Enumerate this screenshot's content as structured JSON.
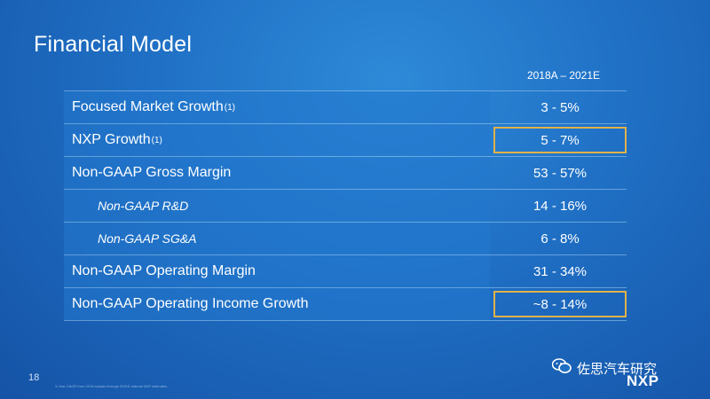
{
  "title": "Financial Model",
  "column_header": "2018A – 2021E",
  "rows": [
    {
      "label": "Focused Market Growth",
      "note": "(1)",
      "value": "3 - 5%"
    },
    {
      "label": "NXP Growth",
      "note": "(1)",
      "value": "5 - 7%"
    },
    {
      "label": "Non-GAAP Gross Margin",
      "value": "53 - 57%"
    },
    {
      "label": "Non-GAAP R&D",
      "value": "14 - 16%"
    },
    {
      "label": "Non-GAAP SG&A",
      "value": "6 - 8%"
    },
    {
      "label": "Non-GAAP Operating Margin",
      "value": "31 - 34%"
    },
    {
      "label": "Non-GAAP Operating Income Growth",
      "value": "~8 - 14%"
    }
  ],
  "page_number": "18",
  "footnote": "3-Year CAGR from 2018 actuals through 2021E internal NXP estimates",
  "watermark": "佐思汽车研究",
  "logo_text": "NXP",
  "colors": {
    "highlight_border": "#e0b24a",
    "background": "#1f6fc4"
  }
}
